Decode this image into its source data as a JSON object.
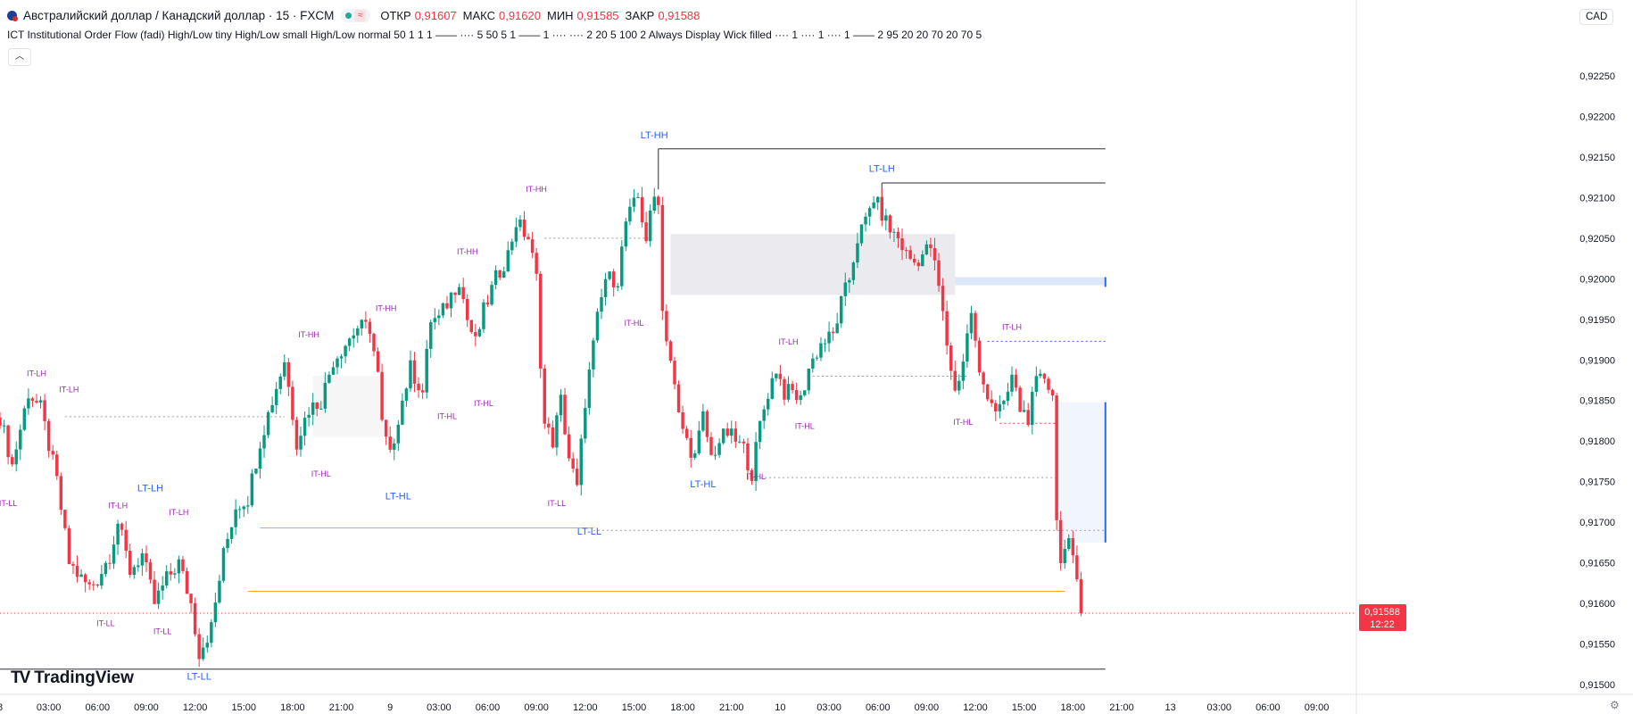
{
  "header": {
    "symbol": "Австралийский доллар / Канадский доллар · 15 · FXCM",
    "open_label": "ОТКР",
    "open_value": "0,91607",
    "high_label": "МАКС",
    "high_value": "0,91620",
    "low_label": "МИН",
    "low_value": "0,91585",
    "close_label": "ЗАКР",
    "close_value": "0,91588",
    "currency_button": "CAD",
    "indicator": "ICT Institutional Order Flow (fadi) High/Low tiny High/Low small High/Low normal 50 1 1 1 —— ···· 5 50 5 1 —— 1 ···· ···· 2 20 5 100 2 Always Display Wick filled ···· 1 ···· 1 ···· 1 —— 2 95 20 20 70 20 70 5",
    "collapse_icon": "chevron-up-icon",
    "settings_icon": "gear-icon"
  },
  "logo": {
    "text": "TradingView",
    "mark": "TV"
  },
  "chart_data": {
    "type": "candlestick",
    "price_axis": {
      "ticks": [
        "0,92250",
        "0,92200",
        "0,92150",
        "0,92100",
        "0,92050",
        "0,92000",
        "0,91950",
        "0,91900",
        "0,91850",
        "0,91800",
        "0,91750",
        "0,91700",
        "0,91650",
        "0,91600",
        "0,91550",
        "0,91500"
      ],
      "tick_values": [
        0.9225,
        0.922,
        0.9215,
        0.921,
        0.9205,
        0.92,
        0.9195,
        0.919,
        0.9185,
        0.918,
        0.9175,
        0.917,
        0.9165,
        0.916,
        0.9155,
        0.915
      ],
      "range": [
        0.91488,
        0.92295
      ]
    },
    "time_axis": {
      "labels": [
        "8",
        "03:00",
        "06:00",
        "09:00",
        "12:00",
        "15:00",
        "18:00",
        "21:00",
        "9",
        "03:00",
        "06:00",
        "09:00",
        "12:00",
        "15:00",
        "18:00",
        "21:00",
        "10",
        "03:00",
        "06:00",
        "09:00",
        "12:00",
        "15:00",
        "18:00",
        "21:00",
        "13",
        "03:00",
        "06:00",
        "09:00"
      ],
      "label_bars": [
        0,
        12,
        24,
        36,
        48,
        60,
        72,
        84,
        96,
        108,
        120,
        132,
        144,
        156,
        168,
        180,
        192,
        204,
        216,
        228,
        240,
        252,
        264,
        276,
        288,
        300,
        312,
        324
      ],
      "bar_range": [
        0,
        332
      ]
    },
    "last_price": {
      "value": 0.91588,
      "label": "0,91588",
      "countdown": "12:22",
      "color": "#f23645"
    },
    "colors": {
      "up": "#089981",
      "down": "#f23645",
      "lt_label": "#2962ff",
      "it_label": "#9c27b0"
    },
    "anchors": [
      [
        0,
        0.9183
      ],
      [
        3,
        0.9177
      ],
      [
        7,
        0.9186
      ],
      [
        10,
        0.9184
      ],
      [
        14,
        0.9175
      ],
      [
        17,
        0.9165
      ],
      [
        20,
        0.9163
      ],
      [
        22,
        0.9162
      ],
      [
        24,
        0.9163
      ],
      [
        27,
        0.9166
      ],
      [
        29,
        0.917
      ],
      [
        32,
        0.9164
      ],
      [
        35,
        0.9166
      ],
      [
        38,
        0.916
      ],
      [
        41,
        0.9163
      ],
      [
        44,
        0.9165
      ],
      [
        47,
        0.916
      ],
      [
        49,
        0.9154
      ],
      [
        52,
        0.9157
      ],
      [
        55,
        0.9166
      ],
      [
        58,
        0.9172
      ],
      [
        61,
        0.9173
      ],
      [
        64,
        0.918
      ],
      [
        67,
        0.9185
      ],
      [
        70,
        0.919
      ],
      [
        73,
        0.918
      ],
      [
        76,
        0.9184
      ],
      [
        79,
        0.9185
      ],
      [
        82,
        0.919
      ],
      [
        85,
        0.9192
      ],
      [
        88,
        0.9194
      ],
      [
        91,
        0.9194
      ],
      [
        93,
        0.9188
      ],
      [
        94,
        0.9182
      ],
      [
        96,
        0.9178
      ],
      [
        98,
        0.9183
      ],
      [
        101,
        0.9189
      ],
      [
        104,
        0.9186
      ],
      [
        106,
        0.9195
      ],
      [
        108,
        0.9195
      ],
      [
        111,
        0.9198
      ],
      [
        113,
        0.92
      ],
      [
        115,
        0.9195
      ],
      [
        117,
        0.9192
      ],
      [
        119,
        0.9196
      ],
      [
        122,
        0.92
      ],
      [
        125,
        0.9203
      ],
      [
        127,
        0.9207
      ],
      [
        130,
        0.9205
      ],
      [
        132,
        0.92
      ],
      [
        133,
        0.919
      ],
      [
        134,
        0.9182
      ],
      [
        136,
        0.918
      ],
      [
        138,
        0.9185
      ],
      [
        140,
        0.9178
      ],
      [
        142,
        0.9174
      ],
      [
        144,
        0.9185
      ],
      [
        147,
        0.9195
      ],
      [
        149,
        0.92
      ],
      [
        152,
        0.92
      ],
      [
        154,
        0.9207
      ],
      [
        157,
        0.921
      ],
      [
        159,
        0.9205
      ],
      [
        161,
        0.921
      ],
      [
        162,
        0.921
      ],
      [
        163,
        0.9196
      ],
      [
        165,
        0.919
      ],
      [
        167,
        0.9183
      ],
      [
        169,
        0.918
      ],
      [
        171,
        0.9178
      ],
      [
        173,
        0.9183
      ],
      [
        175,
        0.9178
      ],
      [
        177,
        0.918
      ],
      [
        179,
        0.9181
      ],
      [
        181,
        0.918
      ],
      [
        183,
        0.9179
      ],
      [
        185,
        0.9176
      ],
      [
        187,
        0.9182
      ],
      [
        189,
        0.9186
      ],
      [
        191,
        0.9189
      ],
      [
        193,
        0.9186
      ],
      [
        195,
        0.9186
      ],
      [
        197,
        0.9185
      ],
      [
        199,
        0.9189
      ],
      [
        202,
        0.9192
      ],
      [
        205,
        0.9193
      ],
      [
        207,
        0.9197
      ],
      [
        209,
        0.92
      ],
      [
        211,
        0.9205
      ],
      [
        213,
        0.9207
      ],
      [
        215,
        0.921
      ],
      [
        217,
        0.9208
      ],
      [
        219,
        0.9206
      ],
      [
        221,
        0.9205
      ],
      [
        223,
        0.9203
      ],
      [
        225,
        0.9202
      ],
      [
        227,
        0.9203
      ],
      [
        229,
        0.9204
      ],
      [
        231,
        0.9199
      ],
      [
        233,
        0.9192
      ],
      [
        235,
        0.9186
      ],
      [
        237,
        0.919
      ],
      [
        239,
        0.9196
      ],
      [
        241,
        0.9188
      ],
      [
        243,
        0.9186
      ],
      [
        245,
        0.9184
      ],
      [
        247,
        0.9184
      ],
      [
        249,
        0.9188
      ],
      [
        251,
        0.9184
      ],
      [
        253,
        0.9183
      ],
      [
        255,
        0.9187
      ],
      [
        257,
        0.9188
      ],
      [
        259,
        0.9186
      ],
      [
        260,
        0.917
      ],
      [
        261,
        0.9166
      ],
      [
        263,
        0.9167
      ],
      [
        265,
        0.9163
      ],
      [
        266,
        0.9159
      ]
    ],
    "structure_labels": [
      {
        "text": "LT-HH",
        "bar": 161,
        "price": 0.92173,
        "kind": "LT"
      },
      {
        "text": "LT-LH",
        "bar": 217,
        "price": 0.92132,
        "kind": "LT"
      },
      {
        "text": "LT-LH",
        "bar": 37,
        "price": 0.91738,
        "kind": "LT"
      },
      {
        "text": "LT-HL",
        "bar": 98,
        "price": 0.91728,
        "kind": "LT"
      },
      {
        "text": "LT-HL",
        "bar": 173,
        "price": 0.91743,
        "kind": "LT"
      },
      {
        "text": "LT-LL",
        "bar": 145,
        "price": 0.91685,
        "kind": "LT"
      },
      {
        "text": "LT-LL",
        "bar": 49,
        "price": 0.91506,
        "kind": "LT"
      },
      {
        "text": "IT-HH",
        "bar": 132,
        "price": 0.92107,
        "kind": "IT"
      },
      {
        "text": "IT-HH",
        "bar": 115,
        "price": 0.9203,
        "kind": "IT"
      },
      {
        "text": "IT-HH",
        "bar": 95,
        "price": 0.9196,
        "kind": "IT"
      },
      {
        "text": "IT-HH",
        "bar": 76,
        "price": 0.91928,
        "kind": "IT"
      },
      {
        "text": "IT-LH",
        "bar": 9,
        "price": 0.9188,
        "kind": "IT"
      },
      {
        "text": "IT-LH",
        "bar": 17,
        "price": 0.9186,
        "kind": "IT"
      },
      {
        "text": "IT-LH",
        "bar": 29,
        "price": 0.91717,
        "kind": "IT"
      },
      {
        "text": "IT-LH",
        "bar": 44,
        "price": 0.91709,
        "kind": "IT"
      },
      {
        "text": "IT-LH",
        "bar": 194,
        "price": 0.91919,
        "kind": "IT"
      },
      {
        "text": "IT-LH",
        "bar": 249,
        "price": 0.91937,
        "kind": "IT"
      },
      {
        "text": "IT-LL",
        "bar": 2,
        "price": 0.9172,
        "kind": "IT"
      },
      {
        "text": "IT-LL",
        "bar": 26,
        "price": 0.91572,
        "kind": "IT"
      },
      {
        "text": "IT-LL",
        "bar": 40,
        "price": 0.91562,
        "kind": "IT"
      },
      {
        "text": "IT-LL",
        "bar": 137,
        "price": 0.9172,
        "kind": "IT"
      },
      {
        "text": "IT-HL",
        "bar": 79,
        "price": 0.91756,
        "kind": "IT"
      },
      {
        "text": "IT-HL",
        "bar": 110,
        "price": 0.91827,
        "kind": "IT"
      },
      {
        "text": "IT-HL",
        "bar": 119,
        "price": 0.91843,
        "kind": "IT"
      },
      {
        "text": "IT-HL",
        "bar": 156,
        "price": 0.91942,
        "kind": "IT"
      },
      {
        "text": "IT-HL",
        "bar": 198,
        "price": 0.91815,
        "kind": "IT"
      },
      {
        "text": "IT-HL",
        "bar": 186,
        "price": 0.91753,
        "kind": "IT"
      },
      {
        "text": "IT-HL",
        "bar": 237,
        "price": 0.9182,
        "kind": "IT"
      }
    ],
    "levels": [
      {
        "price": 0.9216,
        "from": 162,
        "to": 272,
        "color": "#2a2e39",
        "style": "solid"
      },
      {
        "price": 0.92118,
        "from": 217,
        "to": 272,
        "color": "#2a2e39",
        "style": "solid"
      },
      {
        "price": 0.91693,
        "from": 64,
        "to": 146,
        "color": "#f9a825",
        "style": "solid"
      },
      {
        "price": 0.91615,
        "from": 61,
        "to": 262,
        "color": "#f9a825",
        "style": "solid"
      },
      {
        "price": 0.91519,
        "from": 0,
        "to": 272,
        "color": "#2a2e39",
        "style": "solid"
      },
      {
        "price": 0.9205,
        "from": 134,
        "to": 160,
        "color": "#9e9e9e",
        "style": "dotted"
      },
      {
        "price": 0.91923,
        "from": 243,
        "to": 272,
        "color": "#2962ff",
        "style": "dotted"
      },
      {
        "price": 0.9169,
        "from": 146,
        "to": 272,
        "color": "#9e9e9e",
        "style": "dotted"
      },
      {
        "price": 0.91755,
        "from": 186,
        "to": 260,
        "color": "#9e9e9e",
        "style": "dotted"
      },
      {
        "price": 0.91822,
        "from": 246,
        "to": 260,
        "color": "#f23645",
        "style": "dotted"
      },
      {
        "price": 0.9183,
        "from": 16,
        "to": 70,
        "color": "#9e9e9e",
        "style": "dotted"
      },
      {
        "price": 0.9188,
        "from": 200,
        "to": 238,
        "color": "#9e9e9e",
        "style": "dotted"
      }
    ],
    "zones": [
      {
        "bar_from": 165,
        "bar_to": 235,
        "price_top": 0.92055,
        "price_bottom": 0.9198,
        "color": "#e7e8ec"
      },
      {
        "bar_from": 235,
        "bar_to": 272,
        "price_top": 0.92002,
        "price_bottom": 0.91992,
        "color": "#d6e4f8"
      },
      {
        "bar_from": 260,
        "bar_to": 272,
        "price_top": 0.91848,
        "price_bottom": 0.91675,
        "color": "#eef3fd"
      },
      {
        "bar_from": 77,
        "bar_to": 95,
        "price_top": 0.9188,
        "price_bottom": 0.91805,
        "color": "#f4f4f6"
      }
    ]
  }
}
